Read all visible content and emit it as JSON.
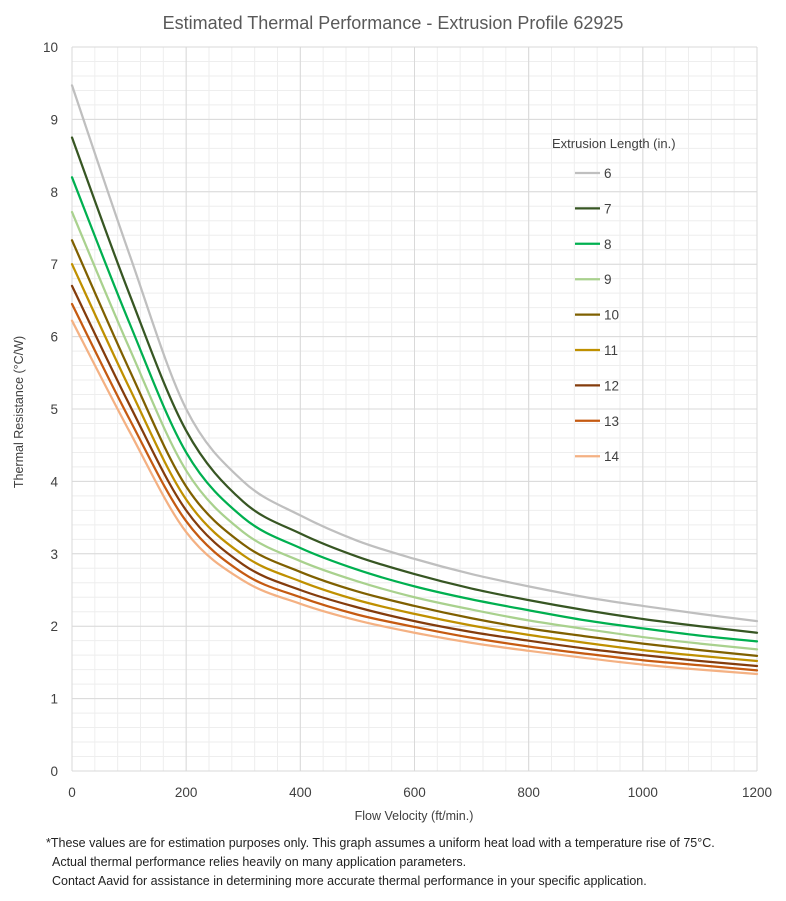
{
  "chart_data": {
    "type": "line",
    "title": "Estimated Thermal Performance - Extrusion Profile 62925",
    "xlabel": "Flow Velocity (ft/min.)",
    "ylabel": "Thermal Resistance (°C/W)",
    "xlim": [
      0,
      1200
    ],
    "ylim": [
      0,
      10
    ],
    "xticks": [
      0,
      200,
      400,
      600,
      800,
      1000,
      1200
    ],
    "yticks": [
      0,
      1,
      2,
      3,
      4,
      5,
      6,
      7,
      8,
      9,
      10
    ],
    "grid": true,
    "legend": {
      "title": "Extrusion Length (in.)",
      "position": "right"
    },
    "x": [
      0,
      100,
      200,
      300,
      400,
      500,
      600,
      700,
      800,
      900,
      1000,
      1100,
      1200
    ],
    "series": [
      {
        "name": "6",
        "color": "#bfbfbf",
        "values": [
          9.47,
          7.15,
          5.0,
          4.0,
          3.53,
          3.18,
          2.93,
          2.72,
          2.55,
          2.4,
          2.28,
          2.17,
          2.07
        ]
      },
      {
        "name": "7",
        "color": "#375623",
        "values": [
          8.75,
          6.6,
          4.7,
          3.72,
          3.28,
          2.96,
          2.72,
          2.52,
          2.36,
          2.22,
          2.1,
          2.0,
          1.91
        ]
      },
      {
        "name": "8",
        "color": "#00b050",
        "values": [
          8.2,
          6.2,
          4.4,
          3.5,
          3.08,
          2.78,
          2.55,
          2.37,
          2.22,
          2.08,
          1.97,
          1.87,
          1.79
        ]
      },
      {
        "name": "9",
        "color": "#a9d18e",
        "values": [
          7.72,
          5.85,
          4.15,
          3.3,
          2.9,
          2.62,
          2.4,
          2.23,
          2.08,
          1.96,
          1.85,
          1.76,
          1.68
        ]
      },
      {
        "name": "10",
        "color": "#7f6000",
        "values": [
          7.33,
          5.55,
          3.93,
          3.13,
          2.75,
          2.48,
          2.28,
          2.11,
          1.97,
          1.86,
          1.76,
          1.67,
          1.59
        ]
      },
      {
        "name": "11",
        "color": "#bf9000",
        "values": [
          7.0,
          5.3,
          3.75,
          2.98,
          2.62,
          2.36,
          2.17,
          2.01,
          1.88,
          1.77,
          1.67,
          1.59,
          1.52
        ]
      },
      {
        "name": "12",
        "color": "#843c0c",
        "values": [
          6.7,
          5.07,
          3.6,
          2.85,
          2.5,
          2.26,
          2.07,
          1.92,
          1.8,
          1.69,
          1.6,
          1.52,
          1.45
        ]
      },
      {
        "name": "13",
        "color": "#c55a11",
        "values": [
          6.45,
          4.87,
          3.45,
          2.73,
          2.4,
          2.16,
          1.99,
          1.84,
          1.72,
          1.62,
          1.53,
          1.46,
          1.39
        ]
      },
      {
        "name": "14",
        "color": "#f4b183",
        "values": [
          6.22,
          4.7,
          3.3,
          2.63,
          2.31,
          2.08,
          1.91,
          1.77,
          1.66,
          1.56,
          1.47,
          1.4,
          1.34
        ]
      }
    ]
  },
  "notes": {
    "line1": "*These values are for estimation purposes only. This graph assumes a uniform heat load with a temperature rise of 75°C.",
    "line2": "Actual thermal performance relies heavily on many application parameters.",
    "line3": "Contact Aavid for assistance in determining more accurate thermal performance in your specific application."
  }
}
